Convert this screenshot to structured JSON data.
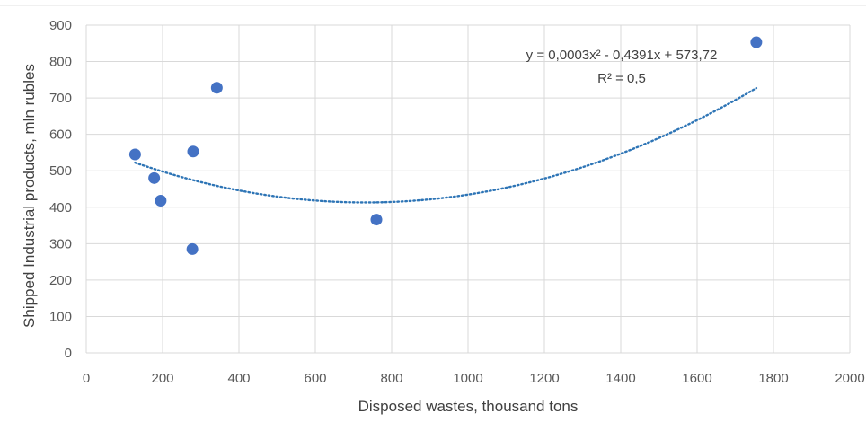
{
  "chart_data": {
    "type": "scatter",
    "title": "",
    "xlabel": "Disposed wastes, thousand tons",
    "ylabel": "Shipped Industrial products, mln rubles",
    "xlim": [
      0,
      2000
    ],
    "ylim": [
      0,
      900
    ],
    "xticks": [
      0,
      200,
      400,
      600,
      800,
      1000,
      1200,
      1400,
      1600,
      1800,
      2000
    ],
    "yticks": [
      0,
      100,
      200,
      300,
      400,
      500,
      600,
      700,
      800,
      900
    ],
    "grid": "vertical and horizontal",
    "legend": "none",
    "marker_color": "#4472c4",
    "trendline_color": "#2e75b6",
    "points": [
      {
        "x": 128,
        "y": 545
      },
      {
        "x": 178,
        "y": 480
      },
      {
        "x": 195,
        "y": 418
      },
      {
        "x": 278,
        "y": 285
      },
      {
        "x": 280,
        "y": 553
      },
      {
        "x": 342,
        "y": 728
      },
      {
        "x": 760,
        "y": 366
      },
      {
        "x": 1755,
        "y": 853
      }
    ],
    "trendline": {
      "type": "polynomial",
      "coefficients": [
        573.72,
        -0.4391,
        0.0003
      ],
      "x_range": [
        128,
        1755
      ]
    },
    "annotations": {
      "equation": "y = 0,0003x² - 0,4391x + 573,72",
      "r_squared": "R² = 0,5"
    }
  }
}
